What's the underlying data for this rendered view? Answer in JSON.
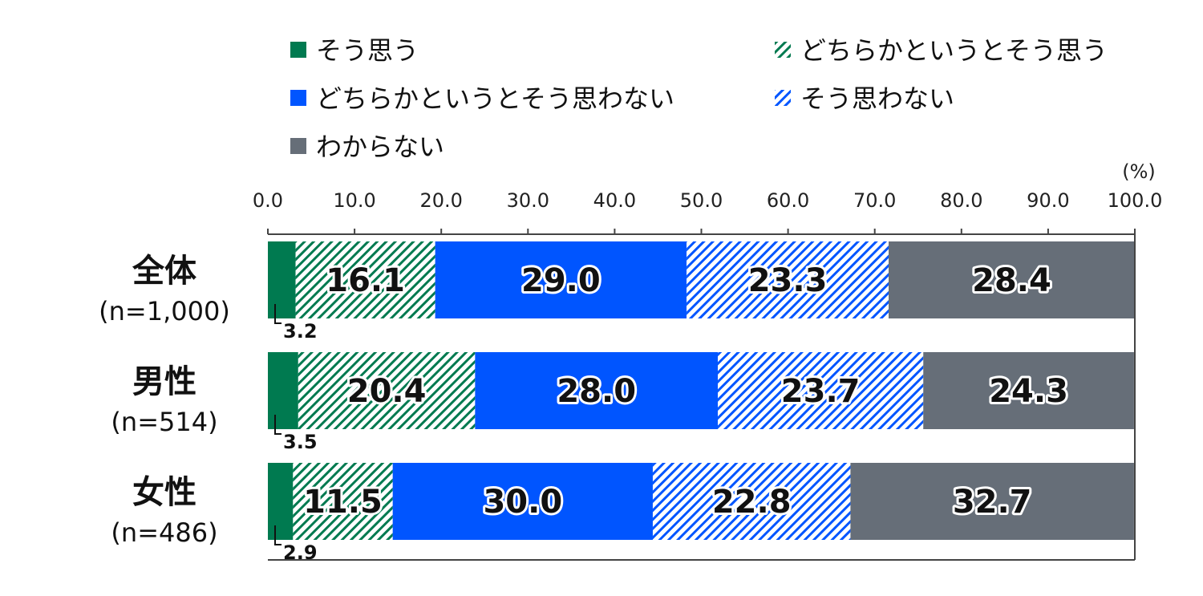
{
  "chart_data": {
    "type": "bar",
    "orientation": "horizontal",
    "stacked": true,
    "unit_label": "(%)",
    "xlim": [
      0,
      100
    ],
    "x_ticks": [
      "0.0",
      "10.0",
      "20.0",
      "30.0",
      "40.0",
      "50.0",
      "60.0",
      "70.0",
      "80.0",
      "90.0",
      "100.0"
    ],
    "categories": [
      {
        "title": "全体",
        "n": "(n=1,000)"
      },
      {
        "title": "男性",
        "n": "(n=514)"
      },
      {
        "title": "女性",
        "n": "(n=486)"
      }
    ],
    "series": [
      {
        "name": "そう思う",
        "values": [
          3.2,
          3.5,
          2.9
        ],
        "labels": [
          "3.2",
          "3.5",
          "2.9"
        ],
        "color": "#007a50",
        "pattern": "solid"
      },
      {
        "name": "どちらかというとそう思う",
        "values": [
          16.1,
          20.4,
          11.5
        ],
        "labels": [
          "16.1",
          "20.4",
          "11.5"
        ],
        "color": "#007a50",
        "pattern": "hatch"
      },
      {
        "name": "どちらかというとそう思わない",
        "values": [
          29.0,
          28.0,
          30.0
        ],
        "labels": [
          "29.0",
          "28.0",
          "30.0"
        ],
        "color": "#0055ff",
        "pattern": "solid"
      },
      {
        "name": "そう思わない",
        "values": [
          23.3,
          23.7,
          22.8
        ],
        "labels": [
          "23.3",
          "23.7",
          "22.8"
        ],
        "color": "#0055ff",
        "pattern": "hatch"
      },
      {
        "name": "わからない",
        "values": [
          28.4,
          24.3,
          32.7
        ],
        "labels": [
          "28.4",
          "24.3",
          "32.7"
        ],
        "color": "#666e78",
        "pattern": "solid"
      }
    ],
    "legend_position": "top",
    "grid": false
  }
}
